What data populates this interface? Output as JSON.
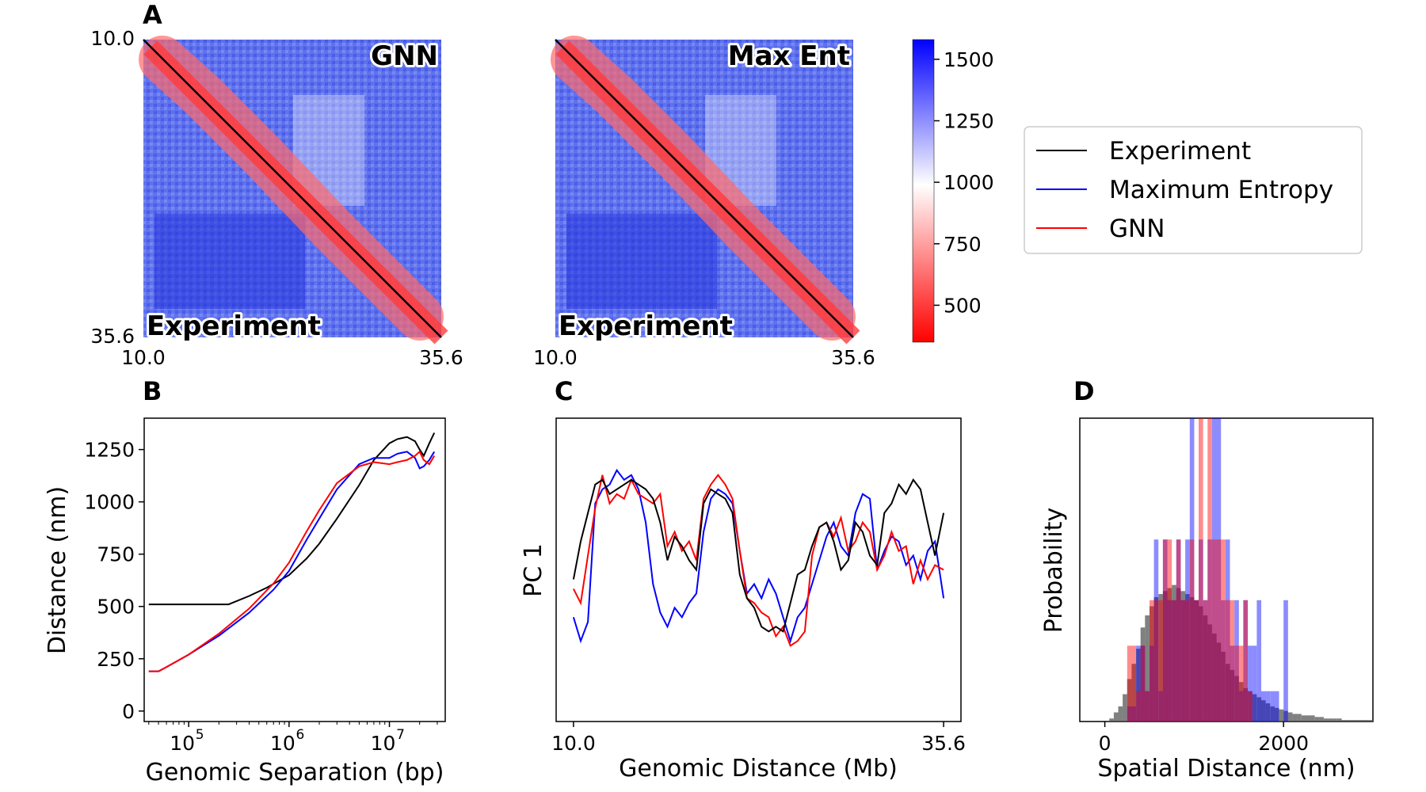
{
  "colors": {
    "experiment": "#000000",
    "maximum_entropy": "#0000ff",
    "gnn": "#ff0000",
    "colormap_low": "#ff0000",
    "colormap_mid": "#ffffff",
    "colormap_high": "#0000ff",
    "hist_experiment": "#555555"
  },
  "chart_data": [
    {
      "panel": "A",
      "type": "heatmap",
      "upper_label": "GNN",
      "lower_label": "Experiment",
      "x_ticks": [
        "10.0",
        "35.6"
      ],
      "y_ticks": [
        "10.0",
        "35.6"
      ],
      "range": [
        10.0,
        35.6
      ],
      "colormap": "bwr_r"
    },
    {
      "panel": "A",
      "type": "heatmap",
      "upper_label": "Max Ent",
      "lower_label": "Experiment",
      "x_ticks": [
        "10.0",
        "35.6"
      ],
      "range": [
        10.0,
        35.6
      ],
      "colormap": "bwr_r"
    },
    {
      "panel": "A-colorbar",
      "type": "heatmap",
      "range": [
        350,
        1580
      ],
      "ticks": [
        500,
        750,
        1000,
        1250,
        1500
      ],
      "tick_labels": [
        "500",
        "750",
        "1000",
        "1250",
        "1500"
      ]
    },
    {
      "panel": "B",
      "type": "line",
      "xlabel": "Genomic Separation (bp)",
      "ylabel": "Distance (nm)",
      "x_scale": "log",
      "xlim": [
        36000,
        36000000
      ],
      "ylim": [
        -50,
        1400
      ],
      "x_ticks": [
        100000,
        1000000,
        10000000
      ],
      "x_tick_labels": [
        "10",
        "10",
        "10"
      ],
      "x_tick_exponents": [
        "5",
        "6",
        "7"
      ],
      "y_ticks": [
        0,
        250,
        500,
        750,
        1000,
        1250
      ],
      "y_tick_labels": [
        "0",
        "250",
        "500",
        "750",
        "1000",
        "1250"
      ],
      "series": [
        {
          "name": "Experiment",
          "x": [
            40000,
            60000,
            100000,
            200000,
            250000,
            400000,
            600000,
            1000000,
            1500000,
            2000000,
            3000000,
            5000000,
            7000000,
            10000000,
            12000000,
            15000000,
            18000000,
            20000000,
            22000000,
            25000000,
            28000000
          ],
          "y": [
            510,
            510,
            510,
            510,
            510,
            550,
            590,
            650,
            730,
            800,
            920,
            1080,
            1200,
            1280,
            1300,
            1310,
            1290,
            1250,
            1220,
            1280,
            1330
          ]
        },
        {
          "name": "Maximum Entropy",
          "x": [
            40000,
            50000,
            60000,
            100000,
            200000,
            400000,
            700000,
            1000000,
            1500000,
            2000000,
            3000000,
            5000000,
            7000000,
            10000000,
            12000000,
            15000000,
            18000000,
            20000000,
            22000000,
            25000000,
            28000000
          ],
          "y": [
            190,
            190,
            210,
            270,
            360,
            470,
            580,
            670,
            820,
            920,
            1060,
            1180,
            1210,
            1210,
            1230,
            1240,
            1210,
            1160,
            1170,
            1200,
            1240
          ]
        },
        {
          "name": "GNN",
          "x": [
            40000,
            50000,
            60000,
            100000,
            200000,
            400000,
            700000,
            1000000,
            1500000,
            2000000,
            3000000,
            5000000,
            7000000,
            10000000,
            12000000,
            15000000,
            18000000,
            20000000,
            22000000,
            25000000,
            28000000
          ],
          "y": [
            190,
            190,
            210,
            270,
            370,
            490,
            610,
            710,
            860,
            960,
            1090,
            1170,
            1190,
            1180,
            1190,
            1200,
            1220,
            1240,
            1200,
            1180,
            1220
          ]
        }
      ]
    },
    {
      "panel": "C",
      "type": "line",
      "xlabel": "Genomic Distance (Mb)",
      "ylabel": "PC 1",
      "xlim": [
        8.8,
        36.8
      ],
      "ylim": [
        -3.2,
        3.2
      ],
      "x_ticks": [
        10.0,
        35.6
      ],
      "x_tick_labels": [
        "10.0",
        "35.6"
      ],
      "series": [
        {
          "name": "Experiment",
          "x": [
            10.0,
            10.5,
            11.0,
            11.5,
            12.0,
            12.5,
            13.0,
            13.5,
            14.0,
            14.5,
            15.0,
            15.5,
            16.0,
            16.5,
            17.0,
            17.5,
            18.0,
            18.5,
            19.0,
            19.5,
            20.0,
            20.5,
            21.0,
            21.5,
            22.0,
            22.5,
            23.0,
            23.5,
            24.0,
            24.5,
            25.0,
            25.5,
            26.0,
            26.5,
            27.0,
            27.5,
            28.0,
            28.5,
            29.0,
            29.5,
            30.0,
            30.5,
            31.0,
            31.5,
            32.0,
            32.5,
            33.0,
            33.5,
            34.0,
            34.5,
            35.0,
            35.6
          ],
          "y": [
            -0.2,
            0.6,
            1.2,
            1.8,
            1.9,
            1.6,
            1.7,
            1.8,
            1.9,
            1.8,
            1.7,
            1.5,
            1.0,
            0.2,
            0.7,
            0.5,
            0.2,
            0.0,
            1.4,
            1.7,
            1.6,
            1.5,
            1.2,
            -0.1,
            -0.6,
            -0.8,
            -1.2,
            -1.3,
            -1.2,
            -1.3,
            -0.7,
            -0.1,
            0.0,
            0.5,
            0.9,
            1.0,
            0.6,
            0.0,
            0.2,
            1.0,
            0.8,
            0.3,
            0.1,
            1.2,
            1.4,
            1.8,
            1.6,
            1.9,
            1.7,
            1.0,
            0.3,
            1.2
          ]
        },
        {
          "name": "Maximum Entropy",
          "x": [
            10.0,
            10.5,
            11.0,
            11.5,
            12.0,
            12.5,
            13.0,
            13.5,
            14.0,
            14.5,
            15.0,
            15.5,
            16.0,
            16.5,
            17.0,
            17.5,
            18.0,
            18.5,
            19.0,
            19.5,
            20.0,
            20.5,
            21.0,
            21.5,
            22.0,
            22.5,
            23.0,
            23.5,
            24.0,
            24.5,
            25.0,
            25.5,
            26.0,
            26.5,
            27.0,
            27.5,
            28.0,
            28.5,
            29.0,
            29.5,
            30.0,
            30.5,
            31.0,
            31.5,
            32.0,
            32.5,
            33.0,
            33.5,
            34.0,
            34.5,
            35.0,
            35.6
          ],
          "y": [
            -1.0,
            -1.5,
            -1.1,
            1.4,
            1.7,
            1.8,
            2.1,
            1.9,
            2.0,
            1.7,
            1.0,
            -0.3,
            -0.9,
            -1.2,
            -0.8,
            -1.0,
            -0.7,
            -0.5,
            0.8,
            1.5,
            1.7,
            1.6,
            1.4,
            0.4,
            -0.5,
            -0.3,
            -0.6,
            -0.2,
            -0.5,
            -1.0,
            -1.5,
            -1.0,
            -0.8,
            -0.3,
            0.2,
            0.7,
            1.0,
            0.5,
            0.3,
            1.2,
            1.6,
            1.5,
            0.0,
            0.4,
            0.7,
            0.6,
            0.1,
            0.3,
            -0.2,
            0.4,
            0.6,
            -0.6
          ]
        },
        {
          "name": "GNN",
          "x": [
            10.0,
            10.5,
            11.0,
            11.5,
            12.0,
            12.5,
            13.0,
            13.5,
            14.0,
            14.5,
            15.0,
            15.5,
            16.0,
            16.5,
            17.0,
            17.5,
            18.0,
            18.5,
            19.0,
            19.5,
            20.0,
            20.5,
            21.0,
            21.5,
            22.0,
            22.5,
            23.0,
            23.5,
            24.0,
            24.5,
            25.0,
            25.5,
            26.0,
            26.5,
            27.0,
            27.5,
            28.0,
            28.5,
            29.0,
            29.5,
            30.0,
            30.5,
            31.0,
            31.5,
            32.0,
            32.5,
            33.0,
            33.5,
            34.0,
            34.5,
            35.0,
            35.6
          ],
          "y": [
            -0.4,
            -0.7,
            0.3,
            1.3,
            2.0,
            1.4,
            1.6,
            1.5,
            1.9,
            1.6,
            1.5,
            1.4,
            1.6,
            0.5,
            0.8,
            0.4,
            0.6,
            0.2,
            1.5,
            1.8,
            2.0,
            1.8,
            1.5,
            0.4,
            -0.6,
            -0.7,
            -0.9,
            -1.0,
            -1.4,
            -1.2,
            -1.6,
            -1.5,
            -1.3,
            0.3,
            0.9,
            1.0,
            0.7,
            1.1,
            0.4,
            0.6,
            1.0,
            0.8,
            0.0,
            0.3,
            0.8,
            0.4,
            0.5,
            -0.3,
            0.2,
            -0.2,
            0.1,
            0.0
          ]
        }
      ]
    },
    {
      "panel": "D",
      "type": "bar",
      "xlabel": "Spatial Distance (nm)",
      "ylabel": "Probability",
      "xlim": [
        -280,
        3000
      ],
      "ylim": [
        0,
        1.0
      ],
      "x_ticks": [
        0,
        2000
      ],
      "x_tick_labels": [
        "0",
        "2000"
      ],
      "bin_width": 50,
      "series": [
        {
          "name": "Experiment",
          "x": [
            0,
            50,
            100,
            150,
            200,
            250,
            300,
            350,
            400,
            450,
            500,
            550,
            600,
            650,
            700,
            750,
            800,
            850,
            900,
            950,
            1000,
            1050,
            1100,
            1150,
            1200,
            1250,
            1300,
            1350,
            1400,
            1450,
            1500,
            1550,
            1600,
            1650,
            1700,
            1750,
            1800,
            1850,
            1900,
            1950,
            2000,
            2050,
            2100,
            2150,
            2200,
            2250,
            2300,
            2350,
            2400,
            2450,
            2500,
            2550,
            2600,
            2650,
            2700,
            2750,
            2800,
            2850,
            2900,
            2950
          ],
          "y": [
            0.0,
            0.01,
            0.03,
            0.05,
            0.09,
            0.14,
            0.19,
            0.24,
            0.31,
            0.35,
            0.38,
            0.41,
            0.42,
            0.43,
            0.44,
            0.45,
            0.44,
            0.43,
            0.42,
            0.41,
            0.4,
            0.38,
            0.35,
            0.32,
            0.29,
            0.26,
            0.23,
            0.19,
            0.17,
            0.15,
            0.13,
            0.11,
            0.1,
            0.09,
            0.08,
            0.07,
            0.06,
            0.05,
            0.045,
            0.04,
            0.035,
            0.03,
            0.025,
            0.025,
            0.02,
            0.02,
            0.02,
            0.015,
            0.015,
            0.01,
            0.01,
            0.01,
            0.01,
            0.005,
            0.005,
            0.005,
            0.005,
            0.005,
            0.005,
            0.005
          ]
        },
        {
          "name": "Maximum Entropy",
          "x": [
            200,
            250,
            300,
            350,
            400,
            450,
            500,
            550,
            600,
            650,
            700,
            750,
            800,
            850,
            900,
            950,
            1000,
            1050,
            1100,
            1150,
            1200,
            1250,
            1300,
            1350,
            1400,
            1450,
            1500,
            1550,
            1600,
            1650,
            1700,
            1750,
            1800,
            1850,
            1900,
            1950,
            2000
          ],
          "y": [
            0.0,
            0.05,
            0.05,
            0.25,
            0.25,
            0.1,
            0.25,
            0.6,
            0.1,
            0.6,
            0.4,
            0.4,
            0.6,
            0.4,
            0.6,
            1.0,
            0.4,
            0.6,
            0.4,
            0.6,
            1.0,
            1.0,
            0.4,
            0.6,
            0.25,
            0.4,
            0.1,
            0.4,
            0.25,
            0.25,
            0.4,
            0.1,
            0.1,
            0.1,
            0.1,
            0.0,
            0.4
          ]
        },
        {
          "name": "GNN",
          "x": [
            200,
            250,
            300,
            350,
            400,
            450,
            500,
            550,
            600,
            650,
            700,
            750,
            800,
            850,
            900,
            950,
            1000,
            1050,
            1100,
            1150,
            1200,
            1250,
            1300,
            1350,
            1400,
            1450,
            1500,
            1550,
            1600,
            1650,
            1700
          ],
          "y": [
            0.0,
            0.25,
            0.25,
            0.1,
            0.25,
            0.1,
            0.4,
            0.4,
            0.4,
            0.6,
            0.6,
            0.4,
            0.6,
            0.4,
            0.4,
            0.6,
            0.4,
            1.0,
            0.4,
            1.0,
            0.6,
            0.6,
            0.6,
            0.4,
            0.4,
            0.25,
            0.25,
            0.4,
            0.1,
            0.0,
            0.0
          ]
        }
      ]
    }
  ],
  "legend": {
    "placement": "right",
    "entries": [
      "Experiment",
      "Maximum Entropy",
      "GNN"
    ]
  },
  "panel_labels": [
    "A",
    "B",
    "C",
    "D"
  ]
}
